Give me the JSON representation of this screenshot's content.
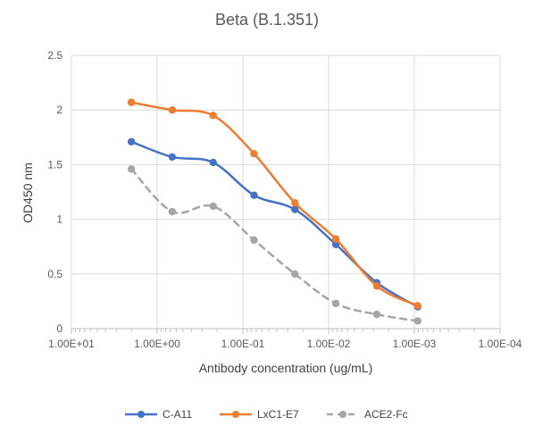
{
  "chart_data": {
    "type": "line",
    "title": "Beta (B.1.351)",
    "xlabel": "Antibody concentration (ug/mL)",
    "ylabel": "OD450 nm",
    "x_scale": "log",
    "x_reversed": true,
    "xlim": [
      10,
      0.0001
    ],
    "ylim": [
      0,
      2.5
    ],
    "x_ticks": [
      {
        "value": 10,
        "label": "1.00E+01"
      },
      {
        "value": 1,
        "label": "1.00E+00"
      },
      {
        "value": 0.1,
        "label": "1.00E-01"
      },
      {
        "value": 0.01,
        "label": "1.00E-02"
      },
      {
        "value": 0.001,
        "label": "1.00E-03"
      },
      {
        "value": 0.0001,
        "label": "1.00E-04"
      }
    ],
    "y_ticks": [
      {
        "value": 0,
        "label": "0"
      },
      {
        "value": 0.5,
        "label": "0.5"
      },
      {
        "value": 1,
        "label": "1"
      },
      {
        "value": 1.5,
        "label": "1.5"
      },
      {
        "value": 2,
        "label": "2"
      },
      {
        "value": 2.5,
        "label": "2.5"
      }
    ],
    "grid": true,
    "legend_position": "bottom",
    "x": [
      2,
      0.667,
      0.222,
      0.0741,
      0.0247,
      0.00823,
      0.00274,
      0.000914
    ],
    "series": [
      {
        "name": "C-A11",
        "color": "#4472C4",
        "dash": "solid",
        "values": [
          1.71,
          1.57,
          1.52,
          1.22,
          1.09,
          0.77,
          0.42,
          0.2
        ]
      },
      {
        "name": "LxC1-E7",
        "color": "#ED7D31",
        "dash": "solid",
        "values": [
          2.07,
          2.0,
          1.95,
          1.6,
          1.15,
          0.82,
          0.39,
          0.21
        ]
      },
      {
        "name": "ACE2-Fc",
        "color": "#A5A5A5",
        "dash": "dashed",
        "values": [
          1.46,
          1.07,
          1.12,
          0.81,
          0.5,
          0.23,
          0.13,
          0.07
        ]
      }
    ]
  }
}
